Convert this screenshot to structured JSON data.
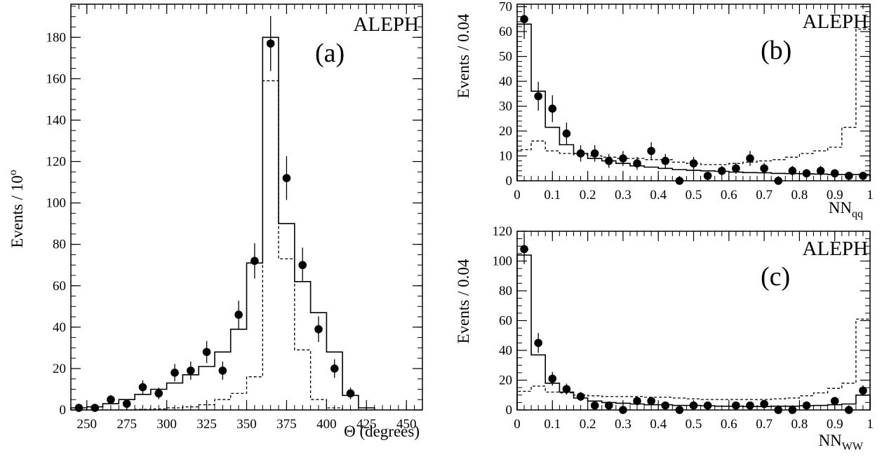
{
  "chart_data": [
    {
      "id": "a",
      "type": "histogram",
      "panel_label": "(a)",
      "experiment": "ALEPH",
      "xlabel": "Θ (degrees)",
      "ylabel_main": "Events / 10",
      "ylabel_sup": "o",
      "xlim": [
        240,
        460
      ],
      "ylim": [
        0,
        196
      ],
      "xticks": [
        250,
        275,
        300,
        325,
        350,
        375,
        400,
        425,
        450
      ],
      "yticks": [
        0,
        20,
        40,
        60,
        80,
        100,
        120,
        140,
        160,
        180
      ],
      "bin_edges": [
        240,
        250,
        260,
        270,
        280,
        290,
        300,
        310,
        320,
        330,
        340,
        350,
        360,
        370,
        380,
        390,
        400,
        410,
        420,
        430
      ],
      "solid": [
        1,
        1.5,
        3,
        5,
        7.5,
        10,
        13,
        17,
        21,
        28,
        39,
        71,
        180,
        90,
        62,
        47,
        28,
        7,
        1
      ],
      "dashed": [
        0,
        0,
        0,
        0,
        0.3,
        0.5,
        1,
        1.5,
        2.5,
        5,
        8,
        16,
        159,
        73,
        29,
        5,
        1,
        0,
        0
      ],
      "points": {
        "x": [
          245,
          255,
          265,
          275,
          285,
          295,
          305,
          315,
          325,
          335,
          345,
          355,
          365,
          375,
          385,
          395,
          405,
          415
        ],
        "y": [
          1,
          1,
          5,
          3,
          11,
          8,
          18,
          19,
          28,
          19,
          46,
          72,
          177,
          112,
          70,
          39,
          20,
          8
        ],
        "err": [
          1,
          1,
          2.2,
          1.7,
          3.3,
          2.8,
          4.2,
          4.4,
          5.3,
          4.4,
          6.8,
          8.5,
          13.3,
          10.6,
          8.4,
          6.2,
          4.5,
          2.8
        ]
      }
    },
    {
      "id": "b",
      "type": "histogram",
      "panel_label": "(b)",
      "experiment": "ALEPH",
      "xlabel_main": "NN",
      "xlabel_sub": "qq",
      "ylabel": "Events / 0.04",
      "xlim": [
        0,
        1
      ],
      "ylim": [
        0,
        71
      ],
      "xticks": [
        0,
        0.1,
        0.2,
        0.3,
        0.4,
        0.5,
        0.6,
        0.7,
        0.8,
        0.9,
        1
      ],
      "xtick_labels": [
        "0",
        "0.1",
        "0.2",
        "0.3",
        "0.4",
        "0.5",
        "0.6",
        "0.7",
        "0.8",
        "0.9",
        "1"
      ],
      "yticks": [
        0,
        10,
        20,
        30,
        40,
        50,
        60,
        70
      ],
      "bin_width": 0.04,
      "solid": [
        63,
        36,
        21.5,
        14.5,
        11,
        9,
        8,
        7,
        6,
        5.5,
        5,
        4.5,
        4.2,
        4,
        3.8,
        3.5,
        3.3,
        3.2,
        3,
        2.9,
        2.8,
        2.7,
        2.5,
        2.5,
        2.5
      ],
      "dashed": [
        12.5,
        16,
        12,
        11,
        10.5,
        10,
        9.5,
        9,
        9,
        8.5,
        8.5,
        7.5,
        7,
        6.5,
        6.5,
        7,
        7.5,
        8,
        8.5,
        9.5,
        11,
        12,
        13.5,
        21.5,
        61
      ],
      "points": {
        "x": [
          0.02,
          0.06,
          0.1,
          0.14,
          0.18,
          0.22,
          0.26,
          0.3,
          0.34,
          0.38,
          0.42,
          0.46,
          0.5,
          0.54,
          0.58,
          0.62,
          0.66,
          0.7,
          0.74,
          0.78,
          0.82,
          0.86,
          0.9,
          0.94,
          0.98
        ],
        "y": [
          65,
          34,
          29,
          19,
          11,
          11,
          8,
          9,
          7,
          12,
          8,
          0,
          7,
          2,
          4,
          5,
          9,
          5,
          0,
          4,
          3,
          4,
          3,
          2,
          2
        ],
        "err": [
          8,
          5.8,
          5.4,
          4.4,
          3.3,
          3.3,
          2.8,
          3,
          2.6,
          3.5,
          2.8,
          0,
          2.6,
          1.4,
          2,
          2.2,
          3,
          2.2,
          0,
          2,
          1.7,
          2,
          1.7,
          1.4,
          1.4
        ]
      }
    },
    {
      "id": "c",
      "type": "histogram",
      "panel_label": "(c)",
      "experiment": "ALEPH",
      "xlabel_main": "NN",
      "xlabel_sub": "WW",
      "ylabel": "Events / 0.04",
      "xlim": [
        0,
        1
      ],
      "ylim": [
        0,
        120
      ],
      "xticks": [
        0,
        0.1,
        0.2,
        0.3,
        0.4,
        0.5,
        0.6,
        0.7,
        0.8,
        0.9,
        1
      ],
      "xtick_labels": [
        "0",
        "0.1",
        "0.2",
        "0.3",
        "0.4",
        "0.5",
        "0.6",
        "0.7",
        "0.8",
        "0.9",
        "1"
      ],
      "yticks": [
        0,
        20,
        40,
        60,
        80,
        100,
        120
      ],
      "bin_width": 0.04,
      "solid": [
        104,
        37,
        18,
        12,
        8,
        6,
        5,
        4.5,
        4,
        3.5,
        3.5,
        3,
        3,
        2.8,
        2.5,
        2.5,
        2.3,
        2.3,
        2.5,
        2.5,
        2.8,
        3,
        3.5,
        4,
        10
      ],
      "dashed": [
        12.5,
        16,
        12,
        11.5,
        10,
        9.5,
        9,
        9,
        9,
        8.5,
        8.5,
        8,
        7.5,
        7,
        7,
        7,
        7,
        7,
        7.5,
        8,
        9.5,
        11.5,
        14.5,
        18,
        61
      ],
      "points": {
        "x": [
          0.02,
          0.06,
          0.1,
          0.14,
          0.18,
          0.22,
          0.26,
          0.3,
          0.34,
          0.38,
          0.42,
          0.46,
          0.5,
          0.54,
          0.62,
          0.66,
          0.7,
          0.74,
          0.78,
          0.82,
          0.9,
          0.94,
          0.98
        ],
        "y": [
          108,
          45,
          21,
          14,
          9,
          3,
          3,
          0,
          6,
          6,
          3,
          0,
          3,
          3,
          3,
          3,
          4,
          0,
          0,
          3,
          6,
          0,
          13
        ],
        "err": [
          10,
          6.7,
          4.6,
          3.7,
          3,
          1.7,
          1.7,
          0,
          2.4,
          2.4,
          1.7,
          0,
          1.7,
          1.7,
          1.7,
          1.7,
          2,
          0,
          0,
          1.7,
          2.4,
          0,
          3.6
        ]
      }
    }
  ]
}
